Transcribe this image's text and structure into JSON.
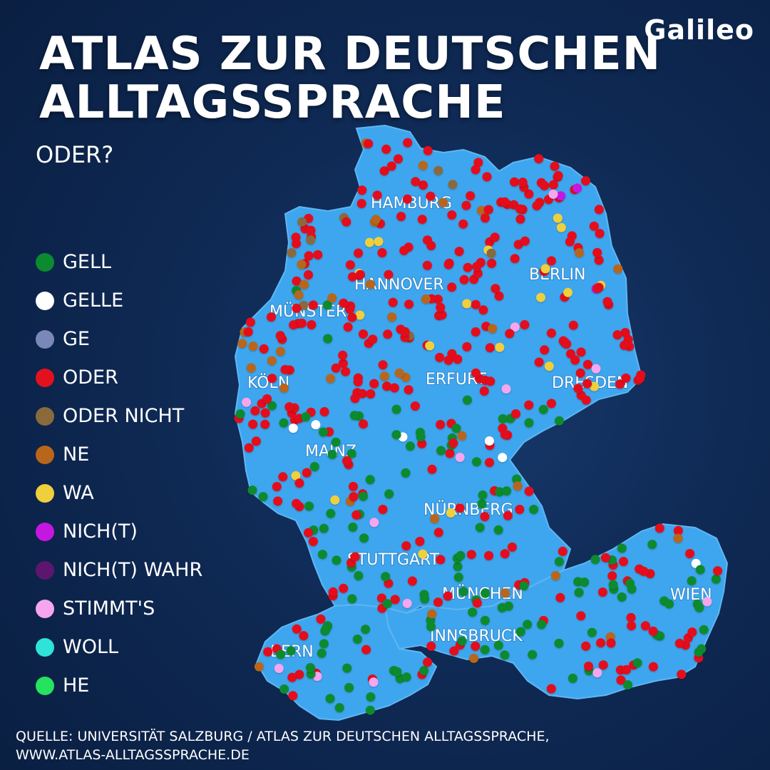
{
  "header": {
    "title_line1": "ATLAS ZUR DEUTSCHEN",
    "title_line2": "ALLTAGSSPRACHE",
    "subtitle": "ODER?",
    "logo": "Galileo"
  },
  "legend": [
    {
      "label": "GELL",
      "color": "#0b8a2f",
      "key": "gell"
    },
    {
      "label": "GELLE",
      "color": "#ffffff",
      "key": "gelle"
    },
    {
      "label": "GE",
      "color": "#7a88b8",
      "key": "ge"
    },
    {
      "label": "ODER",
      "color": "#e3111e",
      "key": "oder"
    },
    {
      "label": "ODER NICHT",
      "color": "#8a6a3c",
      "key": "oder_nicht"
    },
    {
      "label": "NE",
      "color": "#b8661a",
      "key": "ne"
    },
    {
      "label": "WA",
      "color": "#f0cf3c",
      "key": "wa"
    },
    {
      "label": "NICH(T)",
      "color": "#c617e0",
      "key": "nicht"
    },
    {
      "label": "NICH(T) WAHR",
      "color": "#5c1670",
      "key": "nicht_wahr"
    },
    {
      "label": "STIMMT'S",
      "color": "#f5a6ee",
      "key": "stimmts"
    },
    {
      "label": "WOLL",
      "color": "#2ee3d8",
      "key": "woll"
    },
    {
      "label": "HE",
      "color": "#25e35e",
      "key": "he"
    }
  ],
  "cities": [
    "HAMBURG",
    "HANNOVER",
    "BERLIN",
    "MÜNSTER",
    "KÖLN",
    "ERFURT",
    "DRESDEN",
    "MAINZ",
    "NÜRNBERG",
    "STUTTGART",
    "MÜNCHEN",
    "WIEN",
    "INNSBRUCK",
    "BERN"
  ],
  "map": {
    "land_color": "#3ea6ef"
  },
  "source": {
    "line1": "QUELLE: UNIVERSITÄT SALZBURG / ATLAS ZUR DEUTSCHEN ALLTAGSSPRACHE,",
    "line2": "WWW.ATLAS-ALLTAGSSPRACHE.DE"
  }
}
